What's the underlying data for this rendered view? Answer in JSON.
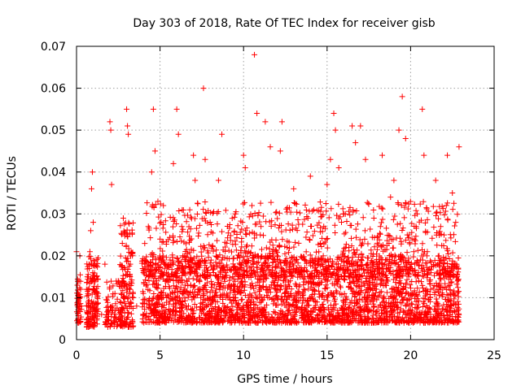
{
  "chart_data": {
    "type": "scatter",
    "title": "Day 303 of 2018, Rate Of TEC Index for receiver gisb",
    "xlabel": "GPS time / hours",
    "ylabel": "ROTI / TECUs",
    "xlim": [
      0,
      25
    ],
    "ylim": [
      0,
      0.07
    ],
    "x_ticks": [
      0,
      5,
      10,
      15,
      20,
      25
    ],
    "y_ticks": [
      0,
      0.01,
      0.02,
      0.03,
      0.04,
      0.05,
      0.06,
      0.07
    ],
    "x_tick_labels": [
      "0",
      "5",
      "10",
      "15",
      "20",
      "25"
    ],
    "y_tick_labels": [
      "0",
      "0.01",
      "0.02",
      "0.03",
      "0.04",
      "0.05",
      "0.06",
      "0.07"
    ],
    "grid": true,
    "marker": "plus",
    "color": "#ff0000",
    "series": [
      {
        "x": [
          0.0,
          0.05,
          0.1,
          0.1,
          0.15,
          0.2,
          0.25,
          0.3,
          0.6,
          0.65,
          0.7,
          0.75,
          0.8,
          0.85,
          0.9,
          0.95,
          1.0,
          1.05,
          1.1,
          1.2,
          1.3,
          1.5,
          1.7,
          2.0,
          2.05,
          2.1,
          2.3,
          2.5,
          2.6,
          2.8,
          3.0,
          3.05,
          3.1,
          3.2,
          3.4,
          3.6,
          4.0,
          4.1,
          4.3,
          4.5,
          4.6,
          4.7,
          4.8,
          5.0,
          5.2,
          5.4,
          5.6,
          5.8,
          6.0,
          6.1,
          6.3,
          6.5,
          6.7,
          7.0,
          7.1,
          7.3,
          7.6,
          7.7,
          8.0,
          8.2,
          8.5,
          8.7,
          9.0,
          9.2,
          9.5,
          9.8,
          10.0,
          10.1,
          10.3,
          10.5,
          10.65,
          10.8,
          11.0,
          11.3,
          11.6,
          12.0,
          12.2,
          12.3,
          12.5,
          12.8,
          13.0,
          13.3,
          13.6,
          14.0,
          14.2,
          14.5,
          14.8,
          15.0,
          15.2,
          15.4,
          15.5,
          15.7,
          16.0,
          16.3,
          16.5,
          16.7,
          17.0,
          17.3,
          17.5,
          17.8,
          18.0,
          18.3,
          18.5,
          18.8,
          19.0,
          19.3,
          19.5,
          19.7,
          19.8,
          20.0,
          20.2,
          20.4,
          20.7,
          20.8,
          21.0,
          21.2,
          21.5,
          21.8,
          22.0,
          22.2,
          22.5,
          22.7,
          22.9
        ],
        "y": [
          0.021,
          0.013,
          0.009,
          0.005,
          0.014,
          0.02,
          0.012,
          0.008,
          0.012,
          0.015,
          0.009,
          0.018,
          0.021,
          0.026,
          0.036,
          0.04,
          0.028,
          0.012,
          0.004,
          0.015,
          0.011,
          0.006,
          0.018,
          0.052,
          0.05,
          0.037,
          0.011,
          0.014,
          0.009,
          0.029,
          0.055,
          0.051,
          0.049,
          0.012,
          0.01,
          0.008,
          0.011,
          0.018,
          0.027,
          0.04,
          0.055,
          0.045,
          0.014,
          0.024,
          0.032,
          0.01,
          0.019,
          0.042,
          0.055,
          0.049,
          0.027,
          0.013,
          0.008,
          0.044,
          0.038,
          0.012,
          0.06,
          0.043,
          0.028,
          0.016,
          0.038,
          0.049,
          0.023,
          0.012,
          0.03,
          0.015,
          0.044,
          0.041,
          0.021,
          0.032,
          0.068,
          0.054,
          0.025,
          0.052,
          0.046,
          0.02,
          0.045,
          0.052,
          0.011,
          0.018,
          0.036,
          0.023,
          0.012,
          0.039,
          0.031,
          0.015,
          0.027,
          0.037,
          0.043,
          0.054,
          0.05,
          0.041,
          0.03,
          0.022,
          0.051,
          0.047,
          0.051,
          0.043,
          0.014,
          0.029,
          0.023,
          0.044,
          0.019,
          0.034,
          0.038,
          0.05,
          0.058,
          0.048,
          0.025,
          0.017,
          0.011,
          0.03,
          0.055,
          0.044,
          0.021,
          0.012,
          0.038,
          0.027,
          0.025,
          0.044,
          0.035,
          0.028,
          0.046
        ]
      }
    ],
    "point_density_bands": [
      {
        "x_range": [
          0.0,
          0.3
        ],
        "y_range": [
          0.004,
          0.016
        ],
        "count": 40
      },
      {
        "x_range": [
          0.6,
          1.3
        ],
        "y_range": [
          0.003,
          0.02
        ],
        "count": 150
      },
      {
        "x_range": [
          1.7,
          2.6
        ],
        "y_range": [
          0.003,
          0.014
        ],
        "count": 70
      },
      {
        "x_range": [
          2.6,
          3.4
        ],
        "y_range": [
          0.003,
          0.028
        ],
        "count": 160
      },
      {
        "x_range": [
          3.9,
          22.9
        ],
        "y_range": [
          0.004,
          0.02
        ],
        "count": 2600
      },
      {
        "x_range": [
          4.0,
          22.8
        ],
        "y_range": [
          0.015,
          0.033
        ],
        "count": 900
      }
    ]
  }
}
